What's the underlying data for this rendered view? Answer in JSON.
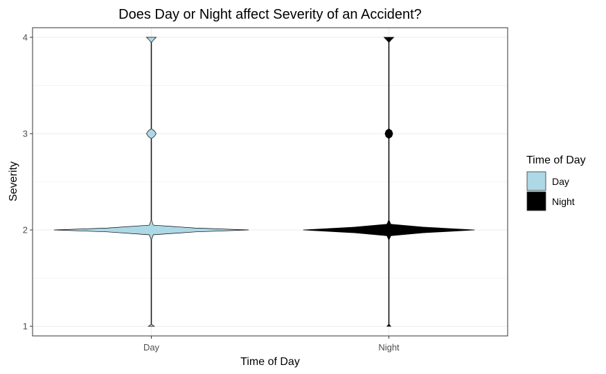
{
  "chart_data": {
    "type": "violin",
    "title": "Does Day or Night affect Severity of an Accident?",
    "xlabel": "Time of Day",
    "ylabel": "Severity",
    "categories": [
      "Day",
      "Night"
    ],
    "ylim": [
      0.9,
      4.1
    ],
    "yticks": [
      1,
      2,
      3,
      4
    ],
    "grid": true,
    "legend": {
      "title": "Time of Day",
      "position": "right",
      "items": [
        {
          "label": "Day",
          "color": "#add8e6"
        },
        {
          "label": "Night",
          "color": "#000000"
        }
      ]
    },
    "series": [
      {
        "name": "Day",
        "color": "#add8e6",
        "density": [
          [
            1.0,
            0.03
          ],
          [
            1.02,
            0.0
          ],
          [
            1.9,
            0.0
          ],
          [
            1.95,
            0.02
          ],
          [
            1.98,
            0.45
          ],
          [
            2.0,
            1.0
          ],
          [
            2.02,
            0.45
          ],
          [
            2.05,
            0.02
          ],
          [
            2.1,
            0.0
          ],
          [
            2.95,
            0.0
          ],
          [
            2.97,
            0.03
          ],
          [
            3.0,
            0.05
          ],
          [
            3.03,
            0.03
          ],
          [
            3.05,
            0.0
          ],
          [
            3.95,
            0.0
          ],
          [
            3.98,
            0.03
          ],
          [
            4.0,
            0.05
          ]
        ]
      },
      {
        "name": "Night",
        "color": "#000000",
        "density": [
          [
            1.0,
            0.02
          ],
          [
            1.02,
            0.0
          ],
          [
            1.9,
            0.0
          ],
          [
            1.94,
            0.02
          ],
          [
            1.97,
            0.35
          ],
          [
            2.0,
            0.88
          ],
          [
            2.03,
            0.35
          ],
          [
            2.06,
            0.02
          ],
          [
            2.1,
            0.0
          ],
          [
            2.95,
            0.0
          ],
          [
            2.97,
            0.03
          ],
          [
            3.0,
            0.04
          ],
          [
            3.03,
            0.03
          ],
          [
            3.05,
            0.0
          ],
          [
            3.95,
            0.0
          ],
          [
            3.98,
            0.03
          ],
          [
            4.0,
            0.05
          ]
        ]
      }
    ]
  }
}
